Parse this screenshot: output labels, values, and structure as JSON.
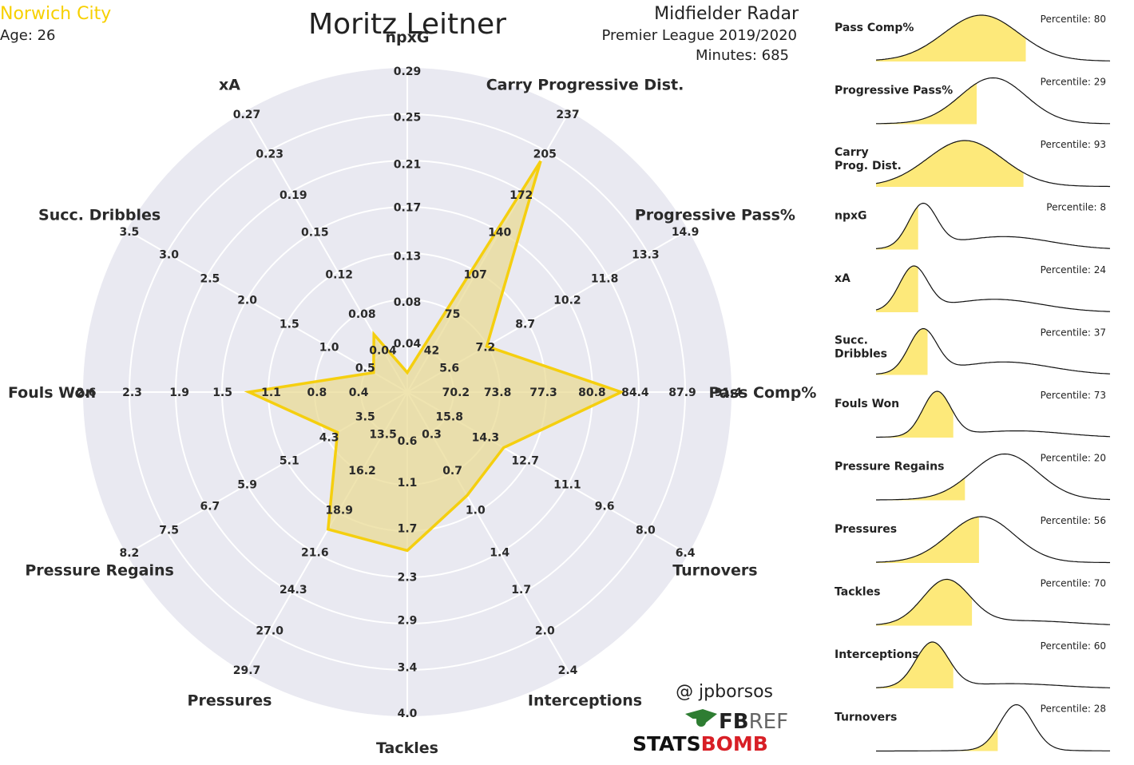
{
  "header": {
    "team": "Norwich City",
    "age": "Age: 26",
    "player": "Moritz Leitner",
    "radar_title": "Midfielder Radar",
    "competition": "Premier League 2019/2020",
    "minutes": "Minutes: 685"
  },
  "colors": {
    "team": "#f7d000",
    "accent": "#f5cf0f",
    "fill": "#e8d98f",
    "background_ring": "#e9e9f1",
    "kde_fill": "#fde97a",
    "statsbomb_red": "#d81f26",
    "fbref_green": "#2e7d32"
  },
  "credits": {
    "author": "@ jpborsos",
    "fbref_prefix": "FB",
    "fbref_suffix": "REF",
    "statsbomb_prefix": "STATS",
    "statsbomb_suffix": "BOMB"
  },
  "chart_data": [
    {
      "type": "radar",
      "axes": [
        {
          "label": "npxG",
          "ticks": [
            "0.04",
            "0.08",
            "0.13",
            "0.17",
            "0.21",
            "0.25",
            "0.29"
          ],
          "value_fraction": 0.07
        },
        {
          "label": "Carry Progressive Dist.",
          "ticks": [
            "42",
            "75",
            "107",
            "140",
            "172",
            "205",
            "237"
          ],
          "value_fraction": 0.96
        },
        {
          "label": "Progressive Pass%",
          "ticks": [
            "5.6",
            "7.2",
            "8.7",
            "10.2",
            "11.8",
            "13.3",
            "14.9"
          ],
          "value_fraction": 0.33
        },
        {
          "label": "Pass Comp%",
          "ticks": [
            "70.2",
            "73.8",
            "77.3",
            "80.8",
            "84.4",
            "87.9",
            "91.4"
          ],
          "value_fraction": 0.77
        },
        {
          "label": "Turnovers",
          "ticks": [
            "15.8",
            "14.3",
            "12.7",
            "11.1",
            "9.6",
            "8.0",
            "6.4"
          ],
          "value_fraction": 0.4
        },
        {
          "label": "Interceptions",
          "ticks": [
            "0.3",
            "0.7",
            "1.0",
            "1.4",
            "1.7",
            "2.0",
            "2.4"
          ],
          "value_fraction": 0.43
        },
        {
          "label": "Tackles",
          "ticks": [
            "0.6",
            "1.1",
            "1.7",
            "2.3",
            "2.9",
            "3.4",
            "4.0"
          ],
          "value_fraction": 0.57
        },
        {
          "label": "Pressures",
          "ticks": [
            "13.5",
            "16.2",
            "18.9",
            "21.6",
            "24.3",
            "27.0",
            "29.7"
          ],
          "value_fraction": 0.57
        },
        {
          "label": "Pressure Regains",
          "ticks": [
            "3.5",
            "4.3",
            "5.1",
            "5.9",
            "6.7",
            "7.5",
            "8.2"
          ],
          "value_fraction": 0.29
        },
        {
          "label": "Fouls Won",
          "ticks": [
            "0.4",
            "0.8",
            "1.1",
            "1.5",
            "1.9",
            "2.3",
            "2.6"
          ],
          "value_fraction": 0.57
        },
        {
          "label": "Succ. Dribbles",
          "ticks": [
            "0.5",
            "1.0",
            "1.5",
            "2.0",
            "2.5",
            "3.0",
            "3.5"
          ],
          "value_fraction": 0.14
        },
        {
          "label": "xA",
          "ticks": [
            "0.04",
            "0.08",
            "0.12",
            "0.15",
            "0.19",
            "0.23",
            "0.27"
          ],
          "value_fraction": 0.24
        }
      ]
    },
    {
      "type": "area",
      "title": "percentile distributions",
      "series": [
        {
          "name": "Pass Comp%",
          "percentile_label": "Percentile: 80",
          "percentile": 80,
          "peak": 0.45,
          "width": 0.16,
          "cut": 0.64,
          "tail": 0.0
        },
        {
          "name": "Progressive Pass%",
          "percentile_label": "Percentile: 29",
          "percentile": 29,
          "peak": 0.5,
          "width": 0.14,
          "cut": 0.43,
          "tail": 0.0
        },
        {
          "name": "Carry\nProg. Dist.",
          "percentile_label": "Percentile: 93",
          "percentile": 93,
          "peak": 0.38,
          "width": 0.16,
          "cut": 0.63,
          "tail": 0.0
        },
        {
          "name": "npxG",
          "percentile_label": "Percentile: 8",
          "percentile": 8,
          "peak": 0.2,
          "width": 0.06,
          "cut": 0.18,
          "tail": 0.3
        },
        {
          "name": "xA",
          "percentile_label": "Percentile: 24",
          "percentile": 24,
          "peak": 0.16,
          "width": 0.06,
          "cut": 0.18,
          "tail": 0.3
        },
        {
          "name": "Succ.\nDribbles",
          "percentile_label": "Percentile: 37",
          "percentile": 37,
          "peak": 0.2,
          "width": 0.06,
          "cut": 0.22,
          "tail": 0.3
        },
        {
          "name": "Fouls Won",
          "percentile_label": "Percentile: 73",
          "percentile": 73,
          "peak": 0.26,
          "width": 0.06,
          "cut": 0.33,
          "tail": 0.15
        },
        {
          "name": "Pressure Regains",
          "percentile_label": "Percentile: 20",
          "percentile": 20,
          "peak": 0.55,
          "width": 0.14,
          "cut": 0.38,
          "tail": 0.0
        },
        {
          "name": "Pressures",
          "percentile_label": "Percentile: 56",
          "percentile": 56,
          "peak": 0.45,
          "width": 0.14,
          "cut": 0.44,
          "tail": 0.0
        },
        {
          "name": "Tackles",
          "percentile_label": "Percentile: 70",
          "percentile": 70,
          "peak": 0.3,
          "width": 0.1,
          "cut": 0.41,
          "tail": 0.1
        },
        {
          "name": "Interceptions",
          "percentile_label": "Percentile: 60",
          "percentile": 60,
          "peak": 0.24,
          "width": 0.07,
          "cut": 0.33,
          "tail": 0.1
        },
        {
          "name": "Turnovers",
          "percentile_label": "Percentile: 28",
          "percentile": 28,
          "peak": 0.6,
          "width": 0.07,
          "cut": 0.52,
          "tail": 0.0
        }
      ]
    }
  ]
}
